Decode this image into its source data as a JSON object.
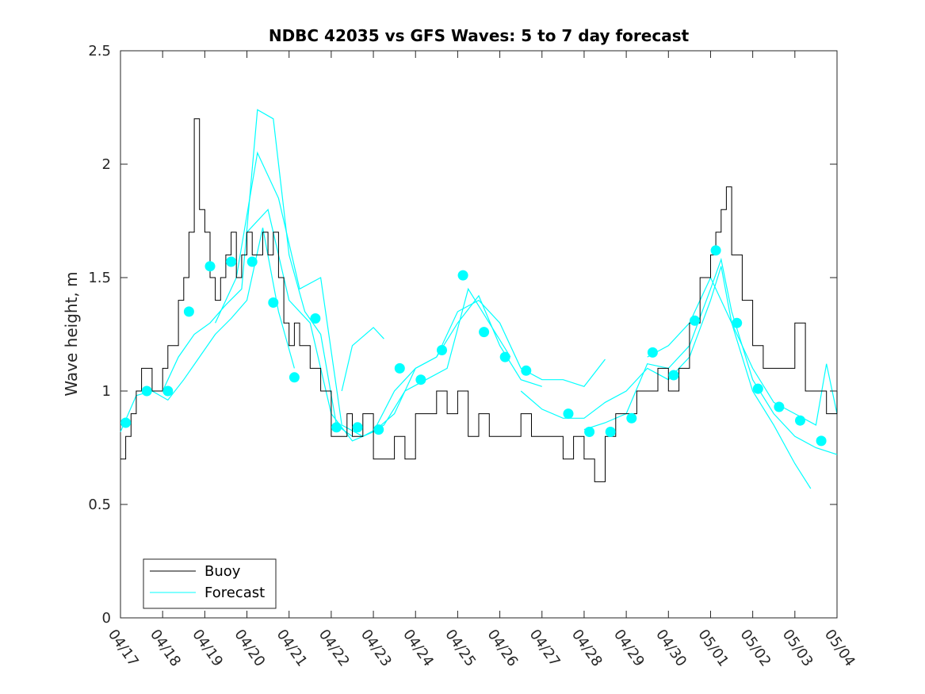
{
  "chart_data": {
    "type": "line",
    "title": "NDBC 42035 vs GFS Waves: 5 to 7 day forecast",
    "xlabel": "",
    "ylabel": "Wave height, m",
    "xlim": [
      "04/17",
      "05/04"
    ],
    "ylim": [
      0,
      2.5
    ],
    "yticks": [
      "0",
      "0.5",
      "1",
      "1.5",
      "2",
      "2.5"
    ],
    "xticks": [
      "04/17",
      "04/18",
      "04/19",
      "04/20",
      "04/21",
      "04/22",
      "04/23",
      "04/24",
      "04/25",
      "04/26",
      "04/27",
      "04/28",
      "04/29",
      "04/30",
      "05/01",
      "05/02",
      "05/03",
      "05/04"
    ],
    "grid": false,
    "legend_position": "bottom-left",
    "legend": [
      "Buoy",
      "Forecast"
    ],
    "colors": {
      "buoy": "#000000",
      "forecast": "#00ffff"
    },
    "buoy": {
      "name": "Buoy",
      "x": [
        "04/17 00:00",
        "04/17 03:00",
        "04/17 06:00",
        "04/17 09:00",
        "04/17 12:00",
        "04/17 18:00",
        "04/18 00:00",
        "04/18 03:00",
        "04/18 06:00",
        "04/18 09:00",
        "04/18 12:00",
        "04/18 15:00",
        "04/18 18:00",
        "04/18 21:00",
        "04/19 00:00",
        "04/19 03:00",
        "04/19 06:00",
        "04/19 09:00",
        "04/19 12:00",
        "04/19 15:00",
        "04/19 18:00",
        "04/19 21:00",
        "04/20 00:00",
        "04/20 03:00",
        "04/20 06:00",
        "04/20 09:00",
        "04/20 12:00",
        "04/20 15:00",
        "04/20 18:00",
        "04/20 21:00",
        "04/21 00:00",
        "04/21 03:00",
        "04/21 06:00",
        "04/21 09:00",
        "04/21 12:00",
        "04/21 18:00",
        "04/22 00:00",
        "04/22 03:00",
        "04/22 06:00",
        "04/22 09:00",
        "04/22 12:00",
        "04/22 18:00",
        "04/23 00:00",
        "04/23 06:00",
        "04/23 12:00",
        "04/23 18:00",
        "04/24 00:00",
        "04/24 06:00",
        "04/24 12:00",
        "04/24 18:00",
        "04/25 00:00",
        "04/25 06:00",
        "04/25 12:00",
        "04/25 18:00",
        "04/26 00:00",
        "04/26 06:00",
        "04/26 12:00",
        "04/26 18:00",
        "04/27 00:00",
        "04/27 06:00",
        "04/27 12:00",
        "04/27 18:00",
        "04/28 00:00",
        "04/28 06:00",
        "04/28 12:00",
        "04/28 18:00",
        "04/29 00:00",
        "04/29 06:00",
        "04/29 12:00",
        "04/29 18:00",
        "04/30 00:00",
        "04/30 06:00",
        "04/30 12:00",
        "04/30 18:00",
        "05/01 00:00",
        "05/01 03:00",
        "05/01 06:00",
        "05/01 09:00",
        "05/01 12:00",
        "05/01 18:00",
        "05/02 00:00",
        "05/02 06:00",
        "05/02 12:00",
        "05/02 18:00",
        "05/03 00:00",
        "05/03 06:00",
        "05/03 12:00",
        "05/03 18:00",
        "05/04 00:00"
      ],
      "y": [
        0.7,
        0.8,
        0.9,
        1.0,
        1.1,
        1.0,
        1.1,
        1.2,
        1.2,
        1.4,
        1.5,
        1.7,
        2.2,
        1.8,
        1.7,
        1.5,
        1.4,
        1.5,
        1.6,
        1.7,
        1.5,
        1.6,
        1.7,
        1.6,
        1.6,
        1.7,
        1.6,
        1.7,
        1.5,
        1.3,
        1.2,
        1.3,
        1.2,
        1.2,
        1.1,
        1.0,
        0.8,
        0.8,
        0.8,
        0.9,
        0.8,
        0.9,
        0.7,
        0.7,
        0.8,
        0.7,
        0.9,
        0.9,
        1.0,
        0.9,
        1.0,
        0.8,
        0.9,
        0.8,
        0.8,
        0.8,
        0.9,
        0.8,
        0.8,
        0.8,
        0.7,
        0.8,
        0.7,
        0.6,
        0.8,
        0.9,
        0.9,
        1.0,
        1.0,
        1.1,
        1.0,
        1.1,
        1.3,
        1.5,
        1.6,
        1.7,
        1.8,
        1.9,
        1.6,
        1.4,
        1.2,
        1.1,
        1.1,
        1.1,
        1.3,
        1.0,
        1.0,
        0.9,
        1.0
      ]
    },
    "forecast_markers": {
      "name": "Forecast",
      "x": [
        "04/17 03:00",
        "04/17 15:00",
        "04/18 03:00",
        "04/18 15:00",
        "04/19 03:00",
        "04/19 15:00",
        "04/20 03:00",
        "04/20 15:00",
        "04/21 03:00",
        "04/21 15:00",
        "04/22 03:00",
        "04/22 15:00",
        "04/23 03:00",
        "04/23 15:00",
        "04/24 03:00",
        "04/24 15:00",
        "04/25 03:00",
        "04/25 15:00",
        "04/26 03:00",
        "04/26 15:00",
        "04/27 15:00",
        "04/28 03:00",
        "04/28 15:00",
        "04/29 03:00",
        "04/29 15:00",
        "04/30 03:00",
        "04/30 15:00",
        "05/01 03:00",
        "05/01 15:00",
        "05/02 03:00",
        "05/02 15:00",
        "05/03 03:00",
        "05/03 15:00"
      ],
      "y": [
        0.86,
        1.0,
        1.0,
        1.35,
        1.55,
        1.57,
        1.57,
        1.39,
        1.06,
        1.32,
        0.84,
        0.84,
        0.83,
        1.1,
        1.05,
        1.18,
        1.51,
        1.26,
        1.15,
        1.09,
        0.9,
        0.82,
        0.82,
        0.88,
        1.17,
        1.07,
        1.31,
        1.62,
        1.3,
        1.01,
        0.93,
        0.87,
        0.78
      ]
    },
    "forecast_runs": [
      {
        "x": [
          "04/17 00:00",
          "04/17 09:00",
          "04/17 18:00",
          "04/18 03:00",
          "04/18 12:00",
          "04/18 21:00",
          "04/19 06:00",
          "04/19 15:00",
          "04/20 00:00",
          "04/20 09:00",
          "04/20 18:00",
          "04/21 03:00"
        ],
        "y": [
          0.82,
          0.98,
          1.0,
          0.96,
          1.05,
          1.15,
          1.25,
          1.32,
          1.4,
          1.72,
          1.35,
          1.1
        ]
      },
      {
        "x": [
          "04/18 00:00",
          "04/18 09:00",
          "04/18 18:00",
          "04/19 03:00",
          "04/19 12:00",
          "04/19 21:00",
          "04/20 06:00",
          "04/20 15:00",
          "04/21 00:00",
          "04/21 09:00",
          "04/21 18:00",
          "04/22 03:00",
          "04/22 12:00"
        ],
        "y": [
          1.0,
          1.15,
          1.25,
          1.3,
          1.38,
          1.45,
          2.24,
          2.2,
          1.6,
          1.35,
          1.25,
          0.85,
          0.8
        ]
      },
      {
        "x": [
          "04/19 06:00",
          "04/19 18:00",
          "04/20 06:00",
          "04/20 18:00",
          "04/21 06:00",
          "04/21 18:00",
          "04/22 06:00",
          "04/22 18:00",
          "04/23 06:00",
          "04/23 18:00",
          "04/24 06:00",
          "04/24 18:00",
          "04/25 06:00",
          "04/25 18:00",
          "04/26 06:00"
        ],
        "y": [
          1.3,
          1.5,
          2.05,
          1.85,
          1.45,
          1.5,
          0.85,
          0.8,
          0.85,
          1.0,
          1.05,
          1.1,
          1.45,
          1.3,
          1.15
        ]
      },
      {
        "x": [
          "04/20 00:00",
          "04/20 12:00",
          "04/21 00:00",
          "04/21 12:00",
          "04/22 00:00",
          "04/22 12:00",
          "04/23 00:00",
          "04/23 12:00",
          "04/24 00:00",
          "04/24 12:00",
          "04/25 00:00",
          "04/25 12:00",
          "04/26 00:00",
          "04/26 12:00",
          "04/27 00:00"
        ],
        "y": [
          1.7,
          1.8,
          1.4,
          1.3,
          0.9,
          0.78,
          0.82,
          0.9,
          1.1,
          1.15,
          1.3,
          1.42,
          1.2,
          1.05,
          1.02
        ]
      },
      {
        "x": [
          "04/22 06:00",
          "04/22 12:00",
          "04/23 00:00",
          "04/23 06:00"
        ],
        "y": [
          1.0,
          1.2,
          1.28,
          1.23
        ]
      },
      {
        "x": [
          "04/23 00:00",
          "04/23 12:00",
          "04/24 00:00",
          "04/24 12:00",
          "04/25 00:00",
          "04/25 12:00",
          "04/26 00:00",
          "04/26 12:00",
          "04/27 00:00",
          "04/27 12:00",
          "04/28 00:00",
          "04/28 12:00"
        ],
        "y": [
          0.82,
          1.0,
          1.1,
          1.15,
          1.35,
          1.4,
          1.3,
          1.1,
          1.05,
          1.05,
          1.02,
          1.14
        ]
      },
      {
        "x": [
          "04/26 12:00",
          "04/27 00:00",
          "04/27 12:00",
          "04/28 00:00",
          "04/28 12:00",
          "04/29 00:00",
          "04/29 12:00",
          "04/30 00:00",
          "04/30 12:00",
          "05/01 00:00",
          "05/01 06:00",
          "05/01 12:00",
          "05/02 00:00",
          "05/02 12:00",
          "05/03 00:00",
          "05/03 09:00"
        ],
        "y": [
          1.0,
          0.92,
          0.88,
          0.88,
          0.95,
          1.0,
          1.1,
          1.05,
          1.15,
          1.4,
          1.55,
          1.3,
          1.0,
          0.85,
          0.68,
          0.57
        ]
      },
      {
        "x": [
          "04/28 00:00",
          "04/28 12:00",
          "04/29 00:00",
          "04/29 12:00",
          "04/30 00:00",
          "04/30 12:00",
          "05/01 00:00",
          "05/01 06:00",
          "05/01 12:00",
          "05/02 00:00",
          "05/02 12:00",
          "05/03 00:00",
          "05/03 12:00",
          "05/04 00:00"
        ],
        "y": [
          0.83,
          0.86,
          0.9,
          1.12,
          1.1,
          1.2,
          1.45,
          1.58,
          1.35,
          1.05,
          0.9,
          0.8,
          0.75,
          0.72
        ]
      },
      {
        "x": [
          "04/29 12:00",
          "04/30 00:00",
          "04/30 12:00",
          "05/01 00:00",
          "05/01 12:00",
          "05/02 00:00",
          "05/02 12:00",
          "05/03 00:00",
          "05/03 12:00",
          "05/03 18:00",
          "05/04 00:00"
        ],
        "y": [
          1.15,
          1.2,
          1.3,
          1.5,
          1.3,
          1.1,
          0.95,
          0.9,
          0.85,
          1.12,
          0.9
        ]
      }
    ]
  }
}
